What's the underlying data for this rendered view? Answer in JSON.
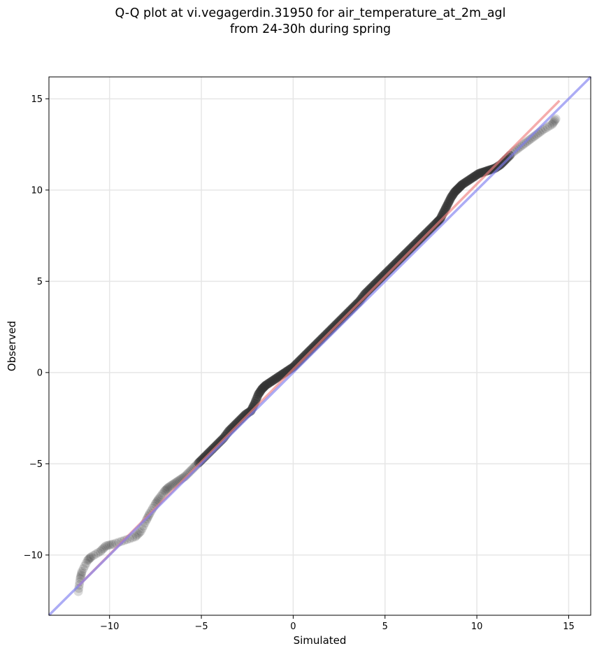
{
  "title_lines": [
    "Q-Q plot at vi.vegagerdin.31950 for air_temperature_at_2m_agl",
    "from 24-30h during spring"
  ],
  "chart_data": {
    "type": "scatter",
    "title": "Q-Q plot at vi.vegagerdin.31950 for air_temperature_at_2m_agl\nfrom 24-30h during spring",
    "xlabel": "Simulated",
    "ylabel": "Observed",
    "xlim": [
      -13.3,
      16.2
    ],
    "ylim": [
      -13.3,
      16.2
    ],
    "xticks": [
      -10,
      -5,
      0,
      5,
      10,
      15
    ],
    "yticks": [
      -10,
      -5,
      0,
      5,
      10,
      15
    ],
    "xtick_labels": [
      "−10",
      "−5",
      "0",
      "5",
      "10",
      "15"
    ],
    "ytick_labels": [
      "−10",
      "−5",
      "0",
      "5",
      "10",
      "15"
    ],
    "grid": true,
    "series": [
      {
        "style": "scatter-quantiles",
        "color": "#333333",
        "x": [
          -11.7,
          -11.6,
          -11.5,
          -11.2,
          -11.0,
          -10.5,
          -10.2,
          -9.8,
          -9.2,
          -8.6,
          -8.3,
          -8.0,
          -7.8,
          -7.5,
          -7.3,
          -7.0,
          -6.8,
          -6.5,
          -6.2,
          -5.9,
          -5.6,
          -5.3,
          -5.0,
          -4.7,
          -4.4,
          -4.1,
          -3.8,
          -3.5,
          -3.2,
          -2.9,
          -2.6,
          -2.3,
          -2.1,
          -1.9,
          -1.7,
          -1.5,
          -1.2,
          -0.9,
          -0.6,
          -0.3,
          0.0,
          0.3,
          0.6,
          0.9,
          1.2,
          1.5,
          1.8,
          2.1,
          2.4,
          2.7,
          3.0,
          3.3,
          3.6,
          3.9,
          4.2,
          4.5,
          4.8,
          5.1,
          5.4,
          5.7,
          6.0,
          6.3,
          6.6,
          6.9,
          7.2,
          7.5,
          7.8,
          8.0,
          8.2,
          8.4,
          8.6,
          8.8,
          9.0,
          9.2,
          9.5,
          9.8,
          10.1,
          10.4,
          10.7,
          11.0,
          11.3,
          11.6,
          12.0,
          12.4,
          12.8,
          13.2,
          13.6,
          14.1,
          14.3
        ],
        "y": [
          -12.0,
          -11.3,
          -10.9,
          -10.3,
          -10.1,
          -9.8,
          -9.5,
          -9.4,
          -9.2,
          -9.0,
          -8.7,
          -8.1,
          -7.7,
          -7.2,
          -6.9,
          -6.5,
          -6.3,
          -6.1,
          -5.9,
          -5.7,
          -5.4,
          -5.1,
          -4.8,
          -4.5,
          -4.2,
          -3.9,
          -3.6,
          -3.2,
          -2.9,
          -2.6,
          -2.3,
          -2.1,
          -1.7,
          -1.2,
          -0.9,
          -0.7,
          -0.5,
          -0.3,
          -0.1,
          0.1,
          0.3,
          0.6,
          0.9,
          1.2,
          1.5,
          1.8,
          2.1,
          2.4,
          2.7,
          3.0,
          3.3,
          3.6,
          3.9,
          4.3,
          4.6,
          4.9,
          5.2,
          5.5,
          5.8,
          6.1,
          6.4,
          6.7,
          7.0,
          7.3,
          7.6,
          7.9,
          8.2,
          8.4,
          8.8,
          9.2,
          9.6,
          9.9,
          10.1,
          10.3,
          10.5,
          10.7,
          10.9,
          11.0,
          11.1,
          11.2,
          11.4,
          11.7,
          12.1,
          12.4,
          12.7,
          13.0,
          13.3,
          13.6,
          13.9
        ]
      },
      {
        "style": "line",
        "color": "#f08080",
        "x": [
          -11.7,
          14.5
        ],
        "y": [
          -11.7,
          14.9
        ]
      },
      {
        "style": "line",
        "color": "#8080f0",
        "x": [
          -13.3,
          16.2
        ],
        "y": [
          -13.3,
          16.2
        ]
      }
    ]
  }
}
